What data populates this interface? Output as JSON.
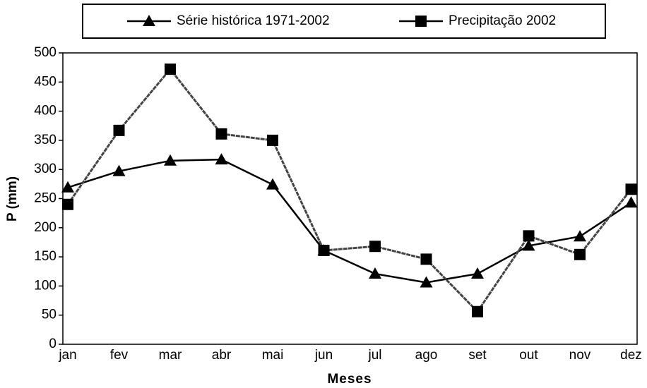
{
  "chart_data": {
    "type": "line",
    "categories": [
      "jan",
      "fev",
      "mar",
      "abr",
      "mai",
      "jun",
      "jul",
      "ago",
      "set",
      "out",
      "nov",
      "dez"
    ],
    "series": [
      {
        "name": "Série histórica 1971-2002",
        "color": "#000000",
        "marker": "triangle",
        "values": [
          269,
          297,
          315,
          317,
          274,
          161,
          121,
          106,
          121,
          169,
          185,
          243
        ]
      },
      {
        "name": "Precipitação 2002",
        "color": "#444444",
        "marker": "square",
        "values": [
          240,
          367,
          472,
          361,
          350,
          161,
          168,
          146,
          56,
          186,
          154,
          266
        ]
      }
    ],
    "x_label": "Meses",
    "y_label": "P (mm)",
    "ylim": [
      0,
      500
    ],
    "yticks": [
      0,
      50,
      100,
      150,
      200,
      250,
      300,
      350,
      400,
      450,
      500
    ],
    "legend": "top"
  }
}
